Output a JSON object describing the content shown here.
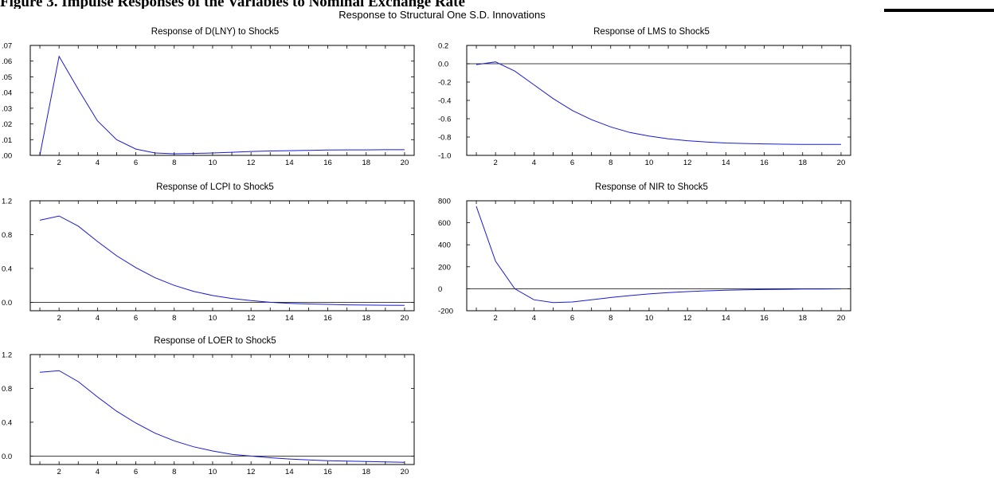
{
  "heading": "Figure 3. Impulse Responses of the Variables to Nominal Exchange Rate",
  "main_title": "Response to Structural One S.D. Innovations",
  "colors": {
    "series": "#1a1ad6",
    "zero_line": "#000000",
    "frame": "#000000"
  },
  "chart_data": [
    {
      "type": "line",
      "title": "Response of D(LNY) to Shock5",
      "x": [
        1,
        2,
        3,
        4,
        5,
        6,
        7,
        8,
        9,
        10,
        11,
        12,
        13,
        14,
        15,
        16,
        17,
        18,
        19,
        20
      ],
      "series": [
        {
          "values": [
            0.0,
            0.063,
            0.042,
            0.022,
            0.01,
            0.004,
            0.0015,
            0.001,
            0.0012,
            0.0015,
            0.002,
            0.0025,
            0.0028,
            0.003,
            0.0032,
            0.0034,
            0.0035,
            0.0035,
            0.0036,
            0.0036
          ]
        }
      ],
      "ylim": [
        0.0,
        0.07
      ],
      "yticks": [
        0.0,
        0.01,
        0.02,
        0.03,
        0.04,
        0.05,
        0.06,
        0.07
      ],
      "ytick_labels": [
        ".00",
        ".01",
        ".02",
        ".03",
        ".04",
        ".05",
        ".06",
        ".07"
      ],
      "xtick_labels": [
        "2",
        "4",
        "6",
        "8",
        "10",
        "12",
        "14",
        "16",
        "18",
        "20"
      ],
      "zero_line": false,
      "grid": false
    },
    {
      "type": "line",
      "title": "Response of LMS to Shock5",
      "x": [
        1,
        2,
        3,
        4,
        5,
        6,
        7,
        8,
        9,
        10,
        11,
        12,
        13,
        14,
        15,
        16,
        17,
        18,
        19,
        20
      ],
      "series": [
        {
          "values": [
            -0.01,
            0.02,
            -0.08,
            -0.23,
            -0.38,
            -0.51,
            -0.61,
            -0.69,
            -0.75,
            -0.79,
            -0.82,
            -0.84,
            -0.855,
            -0.865,
            -0.87,
            -0.875,
            -0.878,
            -0.88,
            -0.88,
            -0.88
          ]
        }
      ],
      "ylim": [
        -1.0,
        0.2
      ],
      "yticks": [
        -1.0,
        -0.8,
        -0.6,
        -0.4,
        -0.2,
        0.0,
        0.2
      ],
      "ytick_labels": [
        "-1.0",
        "-0.8",
        "-0.6",
        "-0.4",
        "-0.2",
        "0.0",
        "0.2"
      ],
      "xtick_labels": [
        "2",
        "4",
        "6",
        "8",
        "10",
        "12",
        "14",
        "16",
        "18",
        "20"
      ],
      "zero_line": true,
      "grid": false
    },
    {
      "type": "line",
      "title": "Response of LCPI to Shock5",
      "x": [
        1,
        2,
        3,
        4,
        5,
        6,
        7,
        8,
        9,
        10,
        11,
        12,
        13,
        14,
        15,
        16,
        17,
        18,
        19,
        20
      ],
      "series": [
        {
          "values": [
            0.97,
            1.02,
            0.9,
            0.72,
            0.55,
            0.41,
            0.29,
            0.2,
            0.13,
            0.08,
            0.045,
            0.02,
            0.0,
            -0.012,
            -0.02,
            -0.025,
            -0.03,
            -0.033,
            -0.035,
            -0.037
          ]
        }
      ],
      "ylim": [
        -0.1,
        1.2
      ],
      "yticks": [
        0.0,
        0.4,
        0.8,
        1.2
      ],
      "ytick_labels": [
        "0.0",
        "0.4",
        "0.8",
        "1.2"
      ],
      "xtick_labels": [
        "2",
        "4",
        "6",
        "8",
        "10",
        "12",
        "14",
        "16",
        "18",
        "20"
      ],
      "zero_line": true,
      "grid": false
    },
    {
      "type": "line",
      "title": "Response of NIR to Shock5",
      "x": [
        1,
        2,
        3,
        4,
        5,
        6,
        7,
        8,
        9,
        10,
        11,
        12,
        13,
        14,
        15,
        16,
        17,
        18,
        19,
        20
      ],
      "series": [
        {
          "values": [
            750,
            250,
            0,
            -100,
            -125,
            -120,
            -100,
            -80,
            -62,
            -47,
            -35,
            -26,
            -19,
            -14,
            -10,
            -7,
            -5,
            -3,
            -2,
            -1
          ]
        }
      ],
      "ylim": [
        -200,
        800
      ],
      "yticks": [
        -200,
        0,
        200,
        400,
        600,
        800
      ],
      "ytick_labels": [
        "-200",
        "0",
        "200",
        "400",
        "600",
        "800"
      ],
      "xtick_labels": [
        "2",
        "4",
        "6",
        "8",
        "10",
        "12",
        "14",
        "16",
        "18",
        "20"
      ],
      "zero_line": true,
      "grid": false
    },
    {
      "type": "line",
      "title": "Response of LOER to Shock5",
      "x": [
        1,
        2,
        3,
        4,
        5,
        6,
        7,
        8,
        9,
        10,
        11,
        12,
        13,
        14,
        15,
        16,
        17,
        18,
        19,
        20
      ],
      "series": [
        {
          "values": [
            0.99,
            1.01,
            0.88,
            0.7,
            0.53,
            0.39,
            0.27,
            0.18,
            0.11,
            0.06,
            0.02,
            0.0,
            -0.02,
            -0.035,
            -0.045,
            -0.055,
            -0.06,
            -0.065,
            -0.07,
            -0.075
          ]
        }
      ],
      "ylim": [
        -0.1,
        1.2
      ],
      "yticks": [
        0.0,
        0.4,
        0.8,
        1.2
      ],
      "ytick_labels": [
        "0.0",
        "0.4",
        "0.8",
        "1.2"
      ],
      "xtick_labels": [
        "2",
        "4",
        "6",
        "8",
        "10",
        "12",
        "14",
        "16",
        "18",
        "20"
      ],
      "zero_line": true,
      "grid": false
    }
  ]
}
